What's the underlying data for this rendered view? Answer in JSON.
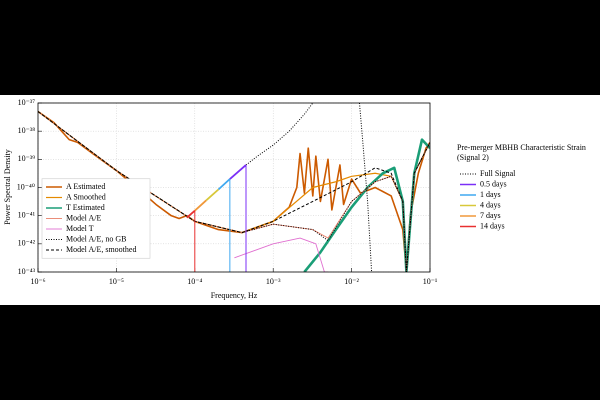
{
  "chart_data": {
    "type": "line",
    "xlabel": "Frequency, Hz",
    "ylabel": "Power Spectral Density",
    "xscale": "log",
    "yscale": "log",
    "grid": true,
    "xlim": [
      1e-06,
      0.1
    ],
    "ylim": [
      1e-43,
      1e-37
    ],
    "xticks": [
      {
        "value": 1e-06,
        "label": "10⁻⁶"
      },
      {
        "value": 1e-05,
        "label": "10⁻⁵"
      },
      {
        "value": 0.0001,
        "label": "10⁻⁴"
      },
      {
        "value": 0.001,
        "label": "10⁻³"
      },
      {
        "value": 0.01,
        "label": "10⁻²"
      },
      {
        "value": 0.1,
        "label": "10⁻¹"
      }
    ],
    "yticks": [
      {
        "value": 1e-43,
        "label": "10⁻⁴³"
      },
      {
        "value": 1e-42,
        "label": "10⁻⁴²"
      },
      {
        "value": 1e-41,
        "label": "10⁻⁴¹"
      },
      {
        "value": 1e-40,
        "label": "10⁻⁴⁰"
      },
      {
        "value": 1e-39,
        "label": "10⁻³⁹"
      },
      {
        "value": 1e-38,
        "label": "10⁻³⁸"
      },
      {
        "value": 1e-37,
        "label": "10⁻³⁷"
      }
    ],
    "legend_title": [
      "Pre-merger MBHB Characteristic Strain",
      "(Signal 2)"
    ],
    "series": [
      {
        "name": "A Estimated",
        "color": "#cc5a00",
        "style": "solid",
        "width": 1.6,
        "legend": "inner",
        "x": [
          1e-06,
          1.6e-06,
          2.5e-06,
          3.2e-06,
          5e-06,
          1e-05,
          2e-05,
          3.2e-05,
          5e-05,
          6.3e-05,
          7.9e-05,
          0.0001,
          0.0002,
          0.0004,
          0.001,
          0.0016,
          0.002,
          0.0022,
          0.0025,
          0.0028,
          0.0032,
          0.0035,
          0.004,
          0.005,
          0.0056,
          0.0071,
          0.0079,
          0.01,
          0.013,
          0.02,
          0.032,
          0.045,
          0.05,
          0.056,
          0.071,
          0.089,
          0.1
        ],
        "values": [
          5e-38,
          2e-38,
          5e-39,
          4e-39,
          1.6e-39,
          4e-40,
          7.9e-41,
          2.5e-41,
          1e-41,
          7.9e-42,
          1e-41,
          6.3e-42,
          3.2e-42,
          2.5e-42,
          6.3e-42,
          2e-41,
          1e-40,
          1.6e-39,
          6.3e-41,
          2.5e-39,
          5e-41,
          1.3e-39,
          3.2e-41,
          1e-39,
          1.6e-41,
          6.3e-40,
          2.5e-41,
          2e-40,
          6.3e-41,
          1e-40,
          5e-41,
          3.2e-42,
          1e-43,
          1e-41,
          3.2e-40,
          2.5e-39,
          4e-39
        ]
      },
      {
        "name": "A Smoothed",
        "color": "#e58a00",
        "style": "solid",
        "width": 1.2,
        "legend": "inner",
        "x": [
          1e-06,
          1e-05,
          0.0001,
          0.0004,
          0.001,
          0.0032,
          0.0063,
          0.01,
          0.02,
          0.032,
          0.045,
          0.05,
          0.063,
          0.1
        ],
        "values": [
          5e-38,
          4e-40,
          6.3e-42,
          2.5e-42,
          6.3e-42,
          1e-40,
          1.6e-40,
          2.5e-40,
          3.2e-40,
          2.5e-40,
          3.2e-41,
          1e-43,
          3.2e-40,
          4e-39
        ]
      },
      {
        "name": "T Estimated",
        "color": "#1a9e77",
        "style": "solid",
        "width": 2.6,
        "legend": "inner",
        "x": [
          0.0025,
          0.004,
          0.0063,
          0.01,
          0.016,
          0.025,
          0.035,
          0.045,
          0.05,
          0.063,
          0.079,
          0.1
        ],
        "values": [
          1e-43,
          5e-43,
          3.2e-42,
          2e-41,
          1e-40,
          3.2e-40,
          5e-40,
          3.2e-41,
          1e-43,
          3.2e-40,
          5e-39,
          2.5e-39
        ]
      },
      {
        "name": "Model A/E",
        "color": "#e8806a",
        "style": "solid",
        "width": 0.9,
        "legend": "inner",
        "x": [
          1e-06,
          1e-05,
          0.0001,
          0.0004,
          0.001,
          0.0032,
          0.005,
          0.01,
          0.02,
          0.032,
          0.045,
          0.05,
          0.063,
          0.1
        ],
        "values": [
          5e-38,
          4e-40,
          6.3e-42,
          2.5e-42,
          5e-42,
          3.2e-42,
          1.6e-42,
          3.2e-41,
          1.6e-40,
          2.5e-40,
          3.2e-41,
          1e-43,
          3.2e-40,
          4e-39
        ]
      },
      {
        "name": "Model T",
        "color": "#e070d0",
        "style": "solid",
        "width": 0.9,
        "legend": "inner",
        "x": [
          0.00032,
          0.001,
          0.0022,
          0.0035,
          0.0045,
          0.005
        ],
        "values": [
          3.2e-43,
          1e-42,
          1.6e-42,
          1e-42,
          1e-43,
          1e-43
        ]
      },
      {
        "name": "Model A/E, no GB",
        "color": "#000000",
        "style": "dotted",
        "width": 1,
        "legend": "inner",
        "x": [
          1e-06,
          1e-05,
          0.0001,
          0.0004,
          0.001,
          0.0032,
          0.005,
          0.01,
          0.02,
          0.032,
          0.045,
          0.05,
          0.063,
          0.1
        ],
        "values": [
          5e-38,
          4e-40,
          6.3e-42,
          2.5e-42,
          5e-42,
          3.2e-42,
          1.3e-42,
          3.2e-41,
          1.6e-40,
          2.5e-40,
          3.2e-41,
          1e-43,
          3.2e-40,
          4e-39
        ]
      },
      {
        "name": "Model A/E, smoothed",
        "color": "#000000",
        "style": "dashed",
        "width": 1,
        "legend": "inner",
        "x": [
          1e-06,
          1e-05,
          0.0001,
          0.0004,
          0.001,
          0.0032,
          0.01,
          0.02,
          0.032,
          0.045,
          0.05,
          0.063,
          0.1
        ],
        "values": [
          5e-38,
          4e-40,
          6.3e-42,
          2.5e-42,
          6.3e-42,
          3.2e-41,
          1.6e-40,
          5e-40,
          3.2e-40,
          3.2e-41,
          1e-43,
          3.2e-40,
          4e-39
        ]
      },
      {
        "name": "Full Signal",
        "color": "#000000",
        "style": "dotted",
        "width": 1,
        "legend": "outer",
        "x": [
          0.00045,
          0.00063,
          0.001,
          0.0016,
          0.0025,
          0.0032,
          0.005,
          0.0126,
          0.014,
          0.016,
          0.018
        ],
        "values": [
          6.3e-40,
          1.3e-39,
          3.2e-39,
          1e-38,
          4e-38,
          1e-37,
          null,
          1e-37,
          3.2e-39,
          3.2e-41,
          1e-43
        ]
      },
      {
        "name": "0.5 days",
        "color": "#7b2ff7",
        "style": "solid",
        "width": 1.8,
        "legend": "outer",
        "drop": true,
        "x": [
          0.00028,
          0.00045
        ],
        "values": [
          2e-40,
          6.3e-40
        ]
      },
      {
        "name": "1 days",
        "color": "#3fa8f0",
        "style": "solid",
        "width": 1.8,
        "legend": "outer",
        "drop": true,
        "x": [
          0.0002,
          0.00028
        ],
        "values": [
          8.5e-41,
          2e-40
        ]
      },
      {
        "name": "4 days",
        "color": "#d8c83a",
        "style": "solid",
        "width": 1.8,
        "legend": "outer",
        "drop": false,
        "x": [
          0.00014,
          0.0002
        ],
        "values": [
          3.5e-41,
          8.5e-41
        ]
      },
      {
        "name": "7 days",
        "color": "#f0983a",
        "style": "solid",
        "width": 1.8,
        "legend": "outer",
        "drop": false,
        "x": [
          0.0001,
          0.00014
        ],
        "values": [
          1.5e-41,
          3.5e-41
        ]
      },
      {
        "name": "14 days",
        "color": "#e83030",
        "style": "solid",
        "width": 1.8,
        "legend": "outer",
        "drop": true,
        "x": [
          7.9e-05,
          0.0001
        ],
        "values": [
          8.5e-42,
          1.5e-41
        ]
      }
    ]
  }
}
